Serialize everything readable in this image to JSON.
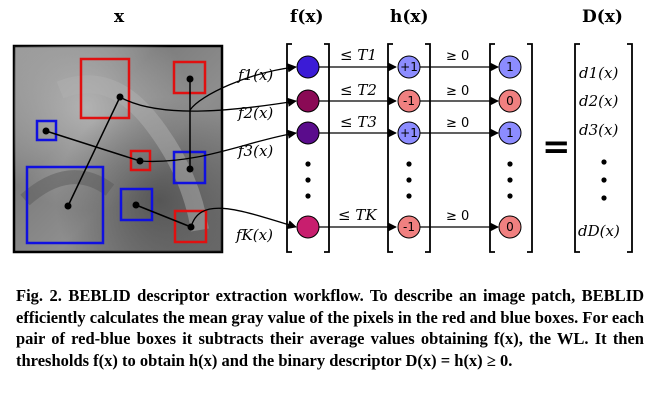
{
  "headers": {
    "x": "x",
    "f": "f(x)",
    "h": "h(x)",
    "d": "D(x)"
  },
  "weak_learners": [
    {
      "f_label": "f1(x)",
      "threshold": "≤ T1",
      "h_value": "+1",
      "geq": "≥ 0",
      "bit": "1",
      "d_label": "d1(x)",
      "f_color": "#3b1bd6",
      "h_color": "#8c8cff",
      "bit_color": "#8c8cff"
    },
    {
      "f_label": "f2(x)",
      "threshold": "≤ T2",
      "h_value": "-1",
      "geq": "≥ 0",
      "bit": "0",
      "d_label": "d2(x)",
      "f_color": "#8a0a55",
      "h_color": "#f08080",
      "bit_color": "#f08080"
    },
    {
      "f_label": "f3(x)",
      "threshold": "≤ T3",
      "h_value": "+1",
      "geq": "≥ 0",
      "bit": "1",
      "d_label": "d3(x)",
      "f_color": "#5a0c8c",
      "h_color": "#8c8cff",
      "bit_color": "#8c8cff"
    },
    {
      "f_label": "fK(x)",
      "threshold": "≤ TK",
      "h_value": "-1",
      "geq": "≥ 0",
      "bit": "0",
      "d_label": "dD(x)",
      "f_color": "#c81e6e",
      "h_color": "#f08080",
      "bit_color": "#f08080"
    }
  ],
  "equals_sign": "=",
  "caption": "Fig. 2. BEBLID descriptor extraction workflow. To describe an image patch, BEBLID efficiently calculates the mean gray value of the pixels in the red and blue boxes. For each pair of red-blue boxes it subtracts their average values obtaining f(x), the WL. It then thresholds f(x) to obtain h(x) and the binary descriptor D(x) = h(x) ≥ 0."
}
